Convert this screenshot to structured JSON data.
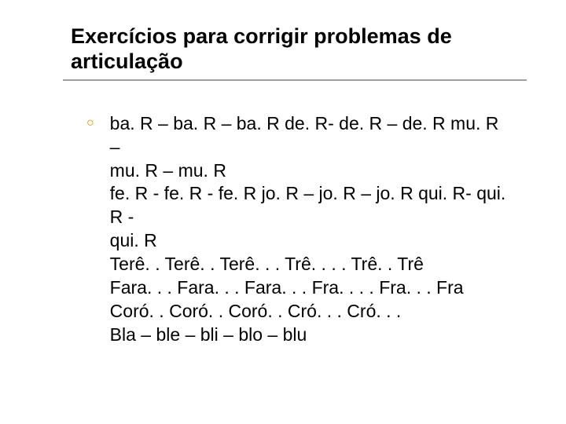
{
  "title": "Exercícios para corrigir problemas de articulação",
  "lines": [
    "ba. R – ba. R – ba. R de. R- de. R – de. R mu. R –",
    "mu. R – mu. R",
    "fe. R - fe. R - fe. R jo. R – jo. R – jo. R qui. R- qui. R -",
    "qui. R",
    "Terê. . Terê. . Terê. . . Trê. . . . Trê. . Trê",
    "Fara. . . Fara. . . Fara. . . Fra. . . . Fra. . . Fra",
    "Coró. . Coró. . Coró. . Cró. . . Cró. . .",
    "Bla – ble – bli – blo – blu"
  ],
  "colors": {
    "bullet": "#d08800",
    "divider": "#a0a0a0",
    "text": "#000000",
    "background": "#ffffff"
  },
  "typography": {
    "title_fontsize": 27,
    "title_weight": "bold",
    "body_fontsize": 23,
    "font_family": "Arial"
  }
}
